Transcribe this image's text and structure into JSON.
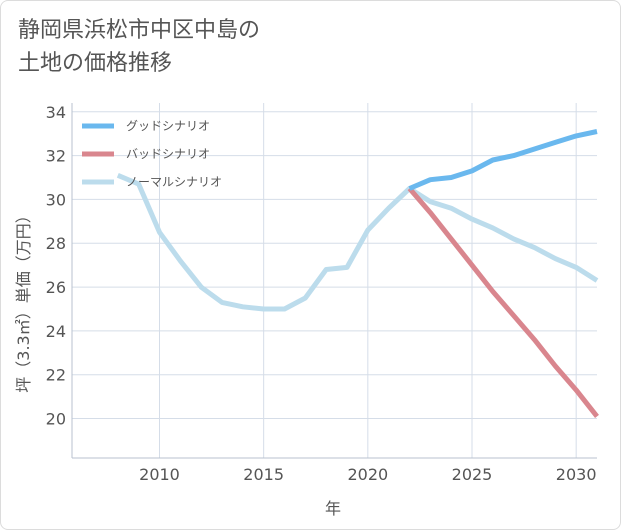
{
  "title": {
    "line1": "静岡県浜松市中区中島の",
    "line2": "土地の価格推移"
  },
  "colors": {
    "good": "#6ab8ee",
    "bad": "#d9868e",
    "normal": "#bcdcec",
    "grid": "#d5dde8",
    "axis": "#555555"
  },
  "chart_data": {
    "type": "line",
    "xlabel": "年",
    "ylabel": "坪（3.3㎡）単価（万円）",
    "xlim": [
      2005.8,
      2031
    ],
    "ylim": [
      18.2,
      34.4
    ],
    "xticks": [
      2010,
      2015,
      2020,
      2025,
      2030
    ],
    "yticks": [
      20,
      22,
      24,
      26,
      28,
      30,
      32,
      34
    ],
    "legend_position": "top-left",
    "grid": true,
    "series": [
      {
        "name": "グッドシナリオ",
        "color_key": "good",
        "points": [
          [
            2022,
            30.5
          ],
          [
            2023,
            30.9
          ],
          [
            2024,
            31.0
          ],
          [
            2025,
            31.3
          ],
          [
            2026,
            31.8
          ],
          [
            2027,
            32.0
          ],
          [
            2028,
            32.3
          ],
          [
            2029,
            32.6
          ],
          [
            2030,
            32.9
          ],
          [
            2031,
            33.1
          ]
        ]
      },
      {
        "name": "バッドシナリオ",
        "color_key": "bad",
        "points": [
          [
            2022,
            30.5
          ],
          [
            2023,
            29.4
          ],
          [
            2024,
            28.2
          ],
          [
            2025,
            27.0
          ],
          [
            2026,
            25.8
          ],
          [
            2027,
            24.7
          ],
          [
            2028,
            23.6
          ],
          [
            2029,
            22.4
          ],
          [
            2030,
            21.3
          ],
          [
            2031,
            20.1
          ]
        ]
      },
      {
        "name": "ノーマルシナリオ",
        "color_key": "normal",
        "points": [
          [
            2008,
            31.1
          ],
          [
            2009,
            30.7
          ],
          [
            2010,
            28.5
          ],
          [
            2011,
            27.2
          ],
          [
            2012,
            26.0
          ],
          [
            2013,
            25.3
          ],
          [
            2014,
            25.1
          ],
          [
            2015,
            25.0
          ],
          [
            2016,
            25.0
          ],
          [
            2017,
            25.5
          ],
          [
            2018,
            26.8
          ],
          [
            2019,
            26.9
          ],
          [
            2020,
            28.6
          ],
          [
            2021,
            29.6
          ],
          [
            2022,
            30.5
          ],
          [
            2023,
            29.9
          ],
          [
            2024,
            29.6
          ],
          [
            2025,
            29.1
          ],
          [
            2026,
            28.7
          ],
          [
            2027,
            28.2
          ],
          [
            2028,
            27.8
          ],
          [
            2029,
            27.3
          ],
          [
            2030,
            26.9
          ],
          [
            2031,
            26.3
          ]
        ]
      }
    ]
  }
}
